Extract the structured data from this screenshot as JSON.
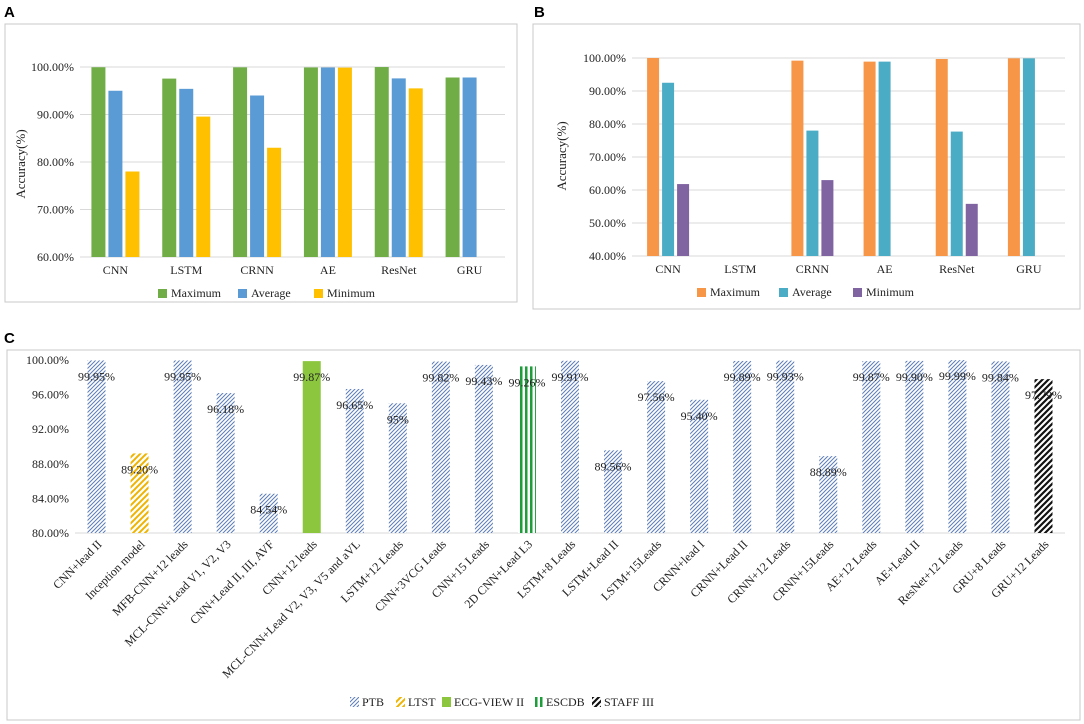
{
  "chart_data": [
    {
      "panel": "A",
      "type": "bar",
      "categories": [
        "CNN",
        "LSTM",
        "CRNN",
        "AE",
        "ResNet",
        "GRU"
      ],
      "series": [
        {
          "name": "Maximum",
          "color": "#70ad47",
          "values": [
            99.95,
            97.56,
            99.93,
            99.9,
            99.99,
            97.79
          ]
        },
        {
          "name": "Average",
          "color": "#5b9bd5",
          "values": [
            95.0,
            95.4,
            94.0,
            99.9,
            97.6,
            97.79
          ]
        },
        {
          "name": "Minimum",
          "color": "#ffc000",
          "values": [
            78.0,
            89.56,
            83.0,
            99.87,
            95.5,
            null
          ]
        }
      ],
      "ylabel": "Accuracy(%)",
      "ylim": [
        60,
        100
      ],
      "yticks": [
        "60.00%",
        "70.00%",
        "80.00%",
        "90.00%",
        "100.00%"
      ],
      "legend": "bottom"
    },
    {
      "panel": "B",
      "type": "bar",
      "categories": [
        "CNN",
        "LSTM",
        "CRNN",
        "AE",
        "ResNet",
        "GRU"
      ],
      "series": [
        {
          "name": "Maximum",
          "color": "#f79646",
          "values": [
            100.0,
            null,
            99.2,
            98.9,
            99.7,
            99.9
          ]
        },
        {
          "name": "Average",
          "color": "#4bacc6",
          "values": [
            92.5,
            null,
            78.0,
            98.9,
            77.7,
            99.9
          ]
        },
        {
          "name": "Minimum",
          "color": "#8064a2",
          "values": [
            61.8,
            null,
            63.0,
            null,
            55.8,
            null
          ]
        }
      ],
      "ylabel": "Accuracy(%)",
      "ylim": [
        40,
        100
      ],
      "yticks": [
        "40.00%",
        "50.00%",
        "60.00%",
        "70.00%",
        "80.00%",
        "90.00%",
        "100.00%"
      ],
      "legend": "bottom"
    },
    {
      "panel": "C",
      "type": "bar",
      "categories": [
        "CNN+lead II",
        "Inception model",
        "MFB-CNN+12 leads",
        "MCL-CNN+Lead V1, V2, V3",
        "CNN+Lead II, III, AVF",
        "CNN+12 leads",
        "MCL-CNN+Lead V2, V3, V5 and aVL",
        "LSTM+12 Leads",
        "CNN+3VCG Leads",
        "CNN+15 Leads",
        "2D CNN+Lead L3",
        "LSTM+8 Leads",
        "LSTM+Lead II",
        "LSTM+15Leads",
        "CRNN+lead I",
        "CRNN+Lead II",
        "CRNN+12 Leads",
        "CRNN+15Leads",
        "AE+12 Leads",
        "AE+Lead II",
        "ResNet+12 Leads",
        "GRU+8 Leads",
        "GRU+12 Leads"
      ],
      "values": [
        99.95,
        89.2,
        99.95,
        96.18,
        84.54,
        99.87,
        96.65,
        95,
        99.82,
        99.43,
        99.26,
        99.91,
        89.56,
        97.56,
        95.4,
        99.89,
        99.93,
        88.89,
        99.87,
        99.9,
        99.99,
        99.84,
        97.79
      ],
      "labels": [
        "99.95%",
        "89.20%",
        "99.95%",
        "96.18%",
        "84.54%",
        "99.87%",
        "96.65%",
        "95%",
        "99.82%",
        "99.43%",
        "99.26%",
        "99.91%",
        "89.56%",
        "97.56%",
        "95.40%",
        "99.89%",
        "99.93%",
        "88.89%",
        "99.87%",
        "99.90%",
        "99.99%",
        "99.84%",
        "97.79%"
      ],
      "datasets": [
        "PTB",
        "LTST",
        "PTB",
        "PTB",
        "PTB",
        "ECG-VIEW II",
        "PTB",
        "PTB",
        "PTB",
        "PTB",
        "ESCDB",
        "PTB",
        "PTB",
        "PTB",
        "PTB",
        "PTB",
        "PTB",
        "PTB",
        "PTB",
        "PTB",
        "PTB",
        "PTB",
        "STAFF III"
      ],
      "legend_entries": [
        {
          "name": "PTB",
          "color": "#5b7db8",
          "style": "hatch"
        },
        {
          "name": "LTST",
          "color": "#f0b400",
          "style": "hatch-bold"
        },
        {
          "name": "ECG-VIEW II",
          "color": "#8cc63f",
          "style": "solid"
        },
        {
          "name": "ESCDB",
          "color": "#1e9e3a",
          "style": "vertical"
        },
        {
          "name": "STAFF III",
          "color": "#111111",
          "style": "hatch-bold"
        }
      ],
      "ylim": [
        80,
        100
      ],
      "yticks": [
        "80.00%",
        "84.00%",
        "88.00%",
        "92.00%",
        "96.00%",
        "100.00%"
      ],
      "legend": "bottom"
    }
  ]
}
